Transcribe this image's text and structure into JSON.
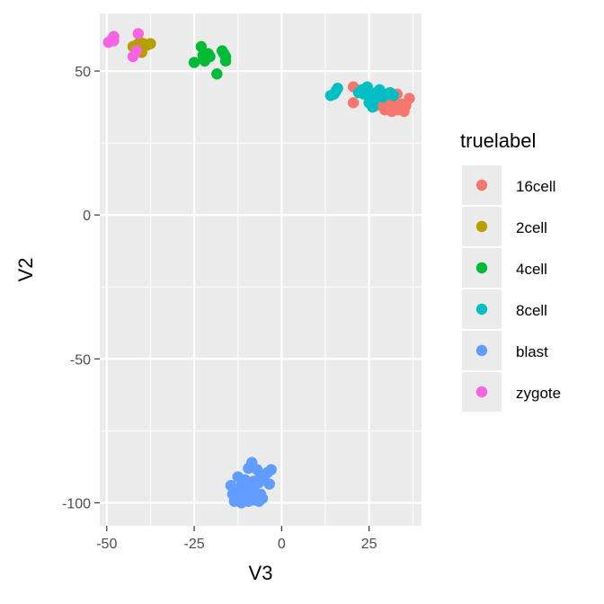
{
  "chart_data": {
    "type": "scatter",
    "title": "",
    "xlabel": "V3",
    "ylabel": "V2",
    "xlim": [
      -52,
      40
    ],
    "ylim": [
      -108,
      70
    ],
    "xticks": [
      -50,
      -25,
      0,
      25
    ],
    "xtick_labels": [
      "-50",
      "-25",
      "0",
      "25"
    ],
    "yticks": [
      -100,
      -50,
      0,
      50
    ],
    "ytick_labels": [
      "-100",
      "-50",
      "0",
      "50"
    ],
    "grid": true,
    "legend": {
      "title": "truelabel",
      "placement": "right"
    },
    "series": [
      {
        "name": "16cell",
        "color": "#F8766D",
        "points": [
          [
            20.5,
            44.5
          ],
          [
            20.5,
            39
          ],
          [
            27.5,
            42
          ],
          [
            28,
            40
          ],
          [
            29,
            38
          ],
          [
            29.5,
            36.5
          ],
          [
            30,
            41
          ],
          [
            30.5,
            39.5
          ],
          [
            31,
            38
          ],
          [
            31.5,
            36
          ],
          [
            32,
            40.5
          ],
          [
            32.5,
            39
          ],
          [
            33,
            42
          ],
          [
            33.5,
            37.5
          ],
          [
            34.5,
            38.5
          ],
          [
            35,
            36
          ],
          [
            35.5,
            38
          ],
          [
            36.5,
            40.5
          ],
          [
            27,
            38
          ],
          [
            33,
            36.5
          ]
        ]
      },
      {
        "name": "2cell",
        "color": "#B79F00",
        "points": [
          [
            -42.5,
            58.5
          ],
          [
            -41.5,
            59
          ],
          [
            -41,
            57.5
          ],
          [
            -40.5,
            58.5
          ],
          [
            -40,
            56.5
          ],
          [
            -39.5,
            59.5
          ],
          [
            -38.5,
            59
          ],
          [
            -37.5,
            59.5
          ],
          [
            -40.5,
            60
          ]
        ]
      },
      {
        "name": "4cell",
        "color": "#00BA38",
        "points": [
          [
            -25,
            53
          ],
          [
            -23,
            58.5
          ],
          [
            -22.5,
            55.5
          ],
          [
            -22,
            53.5
          ],
          [
            -21.5,
            54.5
          ],
          [
            -21,
            56
          ],
          [
            -20.5,
            55
          ],
          [
            -18.5,
            49
          ],
          [
            -17,
            57
          ],
          [
            -16.5,
            56
          ],
          [
            -16,
            55
          ],
          [
            -16,
            53.5
          ],
          [
            -22,
            54
          ]
        ]
      },
      {
        "name": "8cell",
        "color": "#00BFC4",
        "points": [
          [
            14,
            41.5
          ],
          [
            15,
            42
          ],
          [
            15.5,
            43
          ],
          [
            16,
            44
          ],
          [
            22,
            42.5
          ],
          [
            23,
            43.5
          ],
          [
            24.5,
            44.5
          ],
          [
            25,
            41
          ],
          [
            25,
            39
          ],
          [
            25.5,
            38.5
          ],
          [
            26,
            37.5
          ],
          [
            27,
            42.5
          ],
          [
            28,
            43.5
          ],
          [
            29,
            41
          ],
          [
            30,
            42
          ],
          [
            31,
            42.5
          ],
          [
            32,
            41.5
          ],
          [
            26.5,
            40
          ],
          [
            23.5,
            42
          ]
        ]
      },
      {
        "name": "blast",
        "color": "#619CFF",
        "points": [
          [
            -8.5,
            -86
          ],
          [
            -9.5,
            -88
          ],
          [
            -7,
            -88.5
          ],
          [
            -6,
            -90
          ],
          [
            -4,
            -89.5
          ],
          [
            -3,
            -88.5
          ],
          [
            -12.5,
            -91
          ],
          [
            -10.5,
            -92
          ],
          [
            -8,
            -92.5
          ],
          [
            -6.5,
            -93
          ],
          [
            -5,
            -91
          ],
          [
            -3.5,
            -93.5
          ],
          [
            -14.5,
            -94
          ],
          [
            -13,
            -95.5
          ],
          [
            -11.5,
            -94
          ],
          [
            -10,
            -96
          ],
          [
            -9,
            -95
          ],
          [
            -7.5,
            -96.5
          ],
          [
            -14,
            -97
          ],
          [
            -12,
            -98
          ],
          [
            -10.5,
            -98.5
          ],
          [
            -9,
            -97.5
          ],
          [
            -7.5,
            -98
          ],
          [
            -6,
            -97
          ],
          [
            -13.5,
            -99.5
          ],
          [
            -11.5,
            -100
          ],
          [
            -9.5,
            -99.5
          ],
          [
            -8,
            -99
          ],
          [
            -6.5,
            -99.5
          ],
          [
            -5.5,
            -98.5
          ]
        ]
      },
      {
        "name": "zygote",
        "color": "#F564E3",
        "points": [
          [
            -49.5,
            60
          ],
          [
            -48.5,
            61
          ],
          [
            -48,
            62
          ],
          [
            -48,
            60.5
          ],
          [
            -41,
            63
          ],
          [
            -42.5,
            55
          ],
          [
            -41.5,
            57
          ]
        ]
      }
    ]
  }
}
